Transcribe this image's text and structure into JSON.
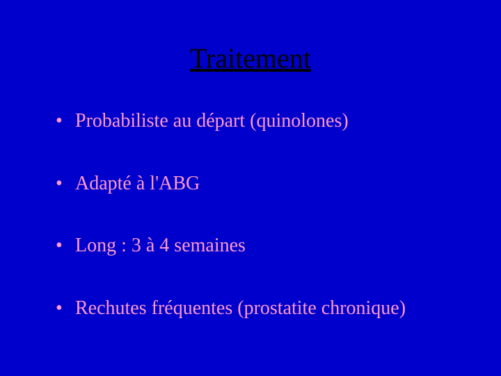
{
  "slide": {
    "title": "Traitement",
    "bullets": [
      "Probabiliste au départ (quinolones)",
      "Adapté à l'ABG",
      "Long : 3 à 4 semaines",
      "Rechutes fréquentes (prostatite chronique)"
    ],
    "background_color": "#0000cc",
    "title_color": "#000000",
    "bullet_color": "#ff99cc",
    "title_fontsize": 40,
    "bullet_fontsize": 28,
    "font_family": "Times New Roman"
  }
}
